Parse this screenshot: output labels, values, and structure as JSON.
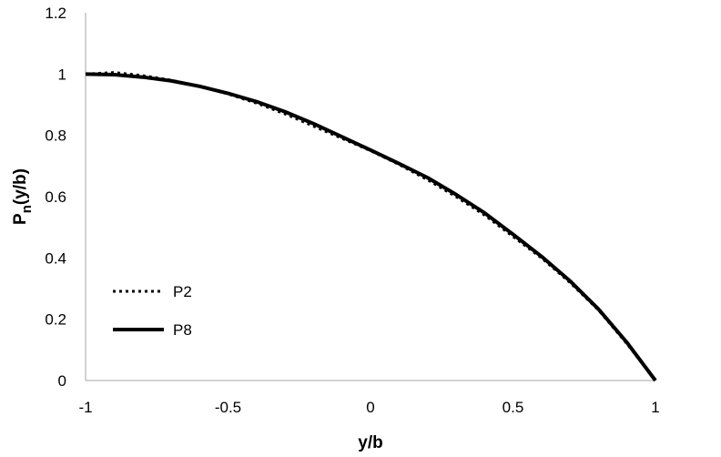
{
  "chart_data": {
    "type": "line",
    "title": "",
    "xlabel": "y/b",
    "ylabel_main": "P",
    "ylabel_sub": "n",
    "ylabel_rest": "(y/b)",
    "xlim": [
      -1,
      1
    ],
    "ylim": [
      0,
      1.2
    ],
    "xticks": [
      -1,
      -0.5,
      0,
      0.5,
      1
    ],
    "xtick_labels": [
      "-1",
      "-0.5",
      "0",
      "0.5",
      "1"
    ],
    "yticks": [
      0,
      0.2,
      0.4,
      0.6,
      0.8,
      1,
      1.2
    ],
    "ytick_labels": [
      "0",
      "0.2",
      "0.4",
      "0.6",
      "0.8",
      "1",
      "1.2"
    ],
    "grid": false,
    "legend_position": "lower-left",
    "series": [
      {
        "name": "P2",
        "style": "dotted",
        "color": "#000000",
        "x": [
          -1,
          -0.9,
          -0.8,
          -0.7,
          -0.6,
          -0.5,
          -0.4,
          -0.3,
          -0.2,
          -0.1,
          0,
          0.1,
          0.2,
          0.3,
          0.4,
          0.5,
          0.6,
          0.7,
          0.8,
          0.9,
          1
        ],
        "values": [
          1.0,
          1.005,
          0.995,
          0.98,
          0.96,
          0.935,
          0.905,
          0.87,
          0.83,
          0.79,
          0.75,
          0.705,
          0.655,
          0.6,
          0.54,
          0.47,
          0.4,
          0.32,
          0.23,
          0.12,
          0.0
        ]
      },
      {
        "name": "P8",
        "style": "solid",
        "color": "#000000",
        "x": [
          -1,
          -0.9,
          -0.8,
          -0.7,
          -0.6,
          -0.5,
          -0.4,
          -0.3,
          -0.2,
          -0.1,
          0,
          0.1,
          0.2,
          0.3,
          0.4,
          0.5,
          0.6,
          0.7,
          0.8,
          0.9,
          1
        ],
        "values": [
          1.0,
          0.998,
          0.99,
          0.978,
          0.96,
          0.937,
          0.91,
          0.877,
          0.838,
          0.795,
          0.752,
          0.708,
          0.662,
          0.607,
          0.547,
          0.477,
          0.405,
          0.325,
          0.233,
          0.124,
          0.0
        ]
      }
    ]
  }
}
